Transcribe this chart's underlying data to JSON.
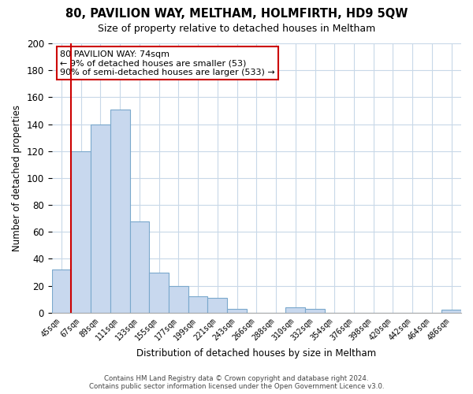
{
  "title": "80, PAVILION WAY, MELTHAM, HOLMFIRTH, HD9 5QW",
  "subtitle": "Size of property relative to detached houses in Meltham",
  "xlabel": "Distribution of detached houses by size in Meltham",
  "ylabel": "Number of detached properties",
  "bar_color": "#c8d8ee",
  "bar_edge_color": "#7aa8cc",
  "vline_color": "#cc0000",
  "categories": [
    "45sqm",
    "67sqm",
    "89sqm",
    "111sqm",
    "133sqm",
    "155sqm",
    "177sqm",
    "199sqm",
    "221sqm",
    "243sqm",
    "266sqm",
    "288sqm",
    "310sqm",
    "332sqm",
    "354sqm",
    "376sqm",
    "398sqm",
    "420sqm",
    "442sqm",
    "464sqm",
    "486sqm"
  ],
  "values": [
    32,
    120,
    140,
    151,
    68,
    30,
    20,
    12,
    11,
    3,
    0,
    0,
    4,
    3,
    0,
    0,
    0,
    0,
    0,
    0,
    2
  ],
  "ylim": [
    0,
    200
  ],
  "yticks": [
    0,
    20,
    40,
    60,
    80,
    100,
    120,
    140,
    160,
    180,
    200
  ],
  "annotation_title": "80 PAVILION WAY: 74sqm",
  "annotation_line1": "← 9% of detached houses are smaller (53)",
  "annotation_line2": "90% of semi-detached houses are larger (533) →",
  "annotation_box_color": "#ffffff",
  "annotation_box_edge": "#cc0000",
  "footer1": "Contains HM Land Registry data © Crown copyright and database right 2024.",
  "footer2": "Contains public sector information licensed under the Open Government Licence v3.0.",
  "bg_color": "#ffffff",
  "grid_color": "#c8d8e8"
}
